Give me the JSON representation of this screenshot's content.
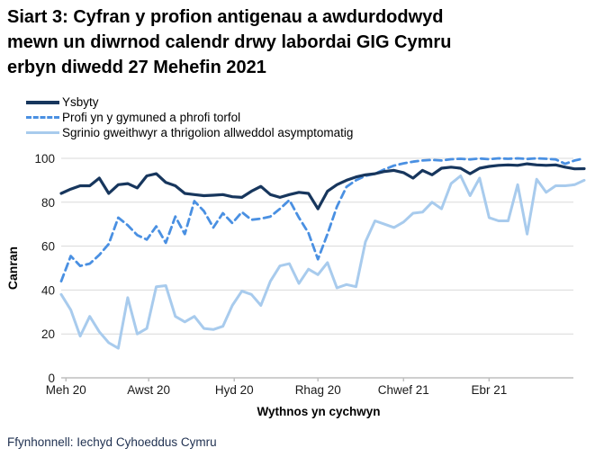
{
  "page": {
    "background": "#ffffff"
  },
  "title_lines": [
    "Siart 3: Cyfran y profion antigenau a awdurdodwyd",
    "mewn un diwrnod calendr drwy labordai GIG Cymru",
    "erbyn diwedd 27 Mehefin 2021"
  ],
  "source": "Ffynhonnell: Iechyd Cyhoeddus Cymru",
  "colors": {
    "grid": "#d9d9d9",
    "axis": "#bfbfbf",
    "tick_text": "#1a1a1a",
    "title": "#000000",
    "source_text": "#1f3050",
    "series_navy": "#17365d",
    "series_blue": "#4a90e2",
    "series_light": "#a8cbed"
  },
  "chart_data": {
    "type": "line",
    "title": "Siart 3: Cyfran y profion antigenau a awdurdodwyd mewn un diwrnod calendr drwy labordai GIG Cymru erbyn diwedd 27 Mehefin 2021",
    "xlabel": "Wythnos yn cychwyn",
    "ylabel": "Canran",
    "ylim": [
      0,
      100
    ],
    "yticks": [
      0,
      20,
      40,
      60,
      80,
      100
    ],
    "x_unit": "weekly data points, Mehefin 2020 - Mehefin 2021",
    "grid": "horizontal",
    "legend_position": "top-left",
    "xticks": [
      {
        "label": "Meh 20",
        "week": 0.5
      },
      {
        "label": "Awst 20",
        "week": 9.2
      },
      {
        "label": "Hyd 20",
        "week": 18.2
      },
      {
        "label": "Rhag 20",
        "week": 27
      },
      {
        "label": "Chwef 21",
        "week": 36
      },
      {
        "label": "Ebr 21",
        "week": 45
      }
    ],
    "series": [
      {
        "id": "ysbyty",
        "name": "Ysbyty",
        "color": "#17365d",
        "style": "solid",
        "values": [
          84,
          86,
          87.5,
          87.5,
          91,
          84,
          88,
          88.5,
          86.5,
          92,
          93,
          89,
          87.5,
          84,
          83.5,
          83,
          83.2,
          83.5,
          82.5,
          82.2,
          85,
          87.2,
          83.5,
          82.2,
          83.5,
          84.5,
          84,
          77,
          85,
          88,
          90,
          91.5,
          92.5,
          93,
          94,
          94.5,
          93.5,
          91,
          94.5,
          92.5,
          95.5,
          96,
          95.5,
          93,
          95.5,
          96.3,
          96.8,
          97,
          96.8,
          97.5,
          97,
          96.8,
          97,
          96,
          95.2,
          95.3
        ]
      },
      {
        "id": "profi-cymuned",
        "name": "Profi yn y gymuned a phrofi torfol",
        "color": "#4a90e2",
        "style": "dashed",
        "values": [
          44,
          55.5,
          51,
          52,
          56,
          61,
          73,
          69.5,
          65,
          63,
          69,
          61.5,
          73.5,
          65.5,
          80.5,
          76,
          68.5,
          75,
          70.5,
          75.5,
          72,
          72.5,
          73.5,
          77,
          81,
          73,
          66,
          54,
          65.5,
          78,
          87,
          90,
          92,
          93,
          95,
          96.7,
          97.7,
          98.5,
          99,
          99.3,
          99,
          99.6,
          99.8,
          99.5,
          99.9,
          99.6,
          100,
          99.8,
          100,
          99.7,
          100,
          99.8,
          99.5,
          97.5,
          99,
          100
        ]
      },
      {
        "id": "sgrinio",
        "name": "Sgrinio gweithwyr a thrigolion allweddol asymptomatig",
        "color": "#a8cbed",
        "style": "solid",
        "values": [
          38,
          31,
          19,
          28,
          21,
          16,
          13.5,
          36.5,
          20,
          22.5,
          41.5,
          42,
          28,
          25.5,
          28,
          22.5,
          22,
          23.5,
          33,
          39.5,
          38,
          33,
          44,
          51,
          52,
          43,
          49.5,
          47,
          52.5,
          41,
          42.5,
          41.5,
          62,
          71.5,
          70,
          68.5,
          71,
          75,
          75.5,
          80,
          77,
          88.5,
          92,
          83,
          91,
          73,
          71.5,
          71.5,
          88,
          65.5,
          90.5,
          84.5,
          87.5,
          87.5,
          88,
          90
        ]
      }
    ]
  }
}
